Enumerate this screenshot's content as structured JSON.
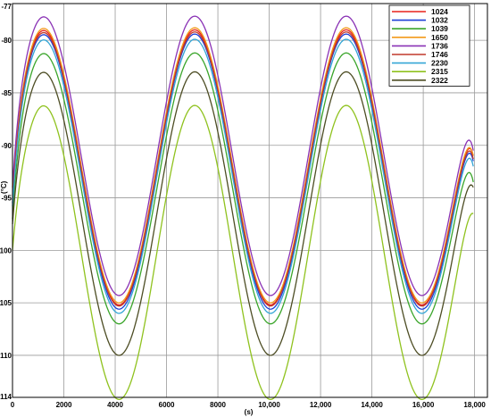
{
  "chart_data": {
    "type": "line",
    "title": "",
    "xlabel": "(s)",
    "ylabel": "(°C)",
    "xlim": [
      0,
      18500
    ],
    "ylim": [
      -114,
      -76.5
    ],
    "x_ticks": [
      0,
      2000,
      4000,
      6000,
      8000,
      10000,
      12000,
      14000,
      16000,
      18000
    ],
    "x_tick_labels": [
      "0",
      "2000",
      "4000",
      "6000",
      "8000",
      "10,000",
      "12,000",
      "14,000",
      "16,000",
      "18,000"
    ],
    "y_ticks": [
      -114,
      -110,
      -105,
      -100,
      -95,
      -90,
      -85,
      -80
    ],
    "y_tick_labels": [
      "-114",
      "-110",
      "-105",
      "-100",
      "-95",
      "-90",
      "-85",
      "-80"
    ],
    "y_top_label": "-77",
    "grid": true,
    "legend_position": "top-right",
    "period_s": 5900,
    "peak_times_s": [
      1200,
      7100,
      12950
    ],
    "trough_times_s": [
      4750,
      10600,
      16550
    ],
    "series": [
      {
        "name": "1024",
        "color": "#e8201a",
        "peak": -79.0,
        "trough": -105.2,
        "start": -95.0,
        "end": -91.0
      },
      {
        "name": "1032",
        "color": "#1f3fd6",
        "peak": -79.4,
        "trough": -105.6,
        "start": -95.5,
        "end": -91.5
      },
      {
        "name": "1039",
        "color": "#3aa52a",
        "peak": -81.2,
        "trough": -107.0,
        "start": -97.0,
        "end": -93.5
      },
      {
        "name": "1650",
        "color": "#f39a1a",
        "peak": -78.8,
        "trough": -105.0,
        "start": -94.8,
        "end": -91.0
      },
      {
        "name": "1736",
        "color": "#8a32b5",
        "peak": -77.7,
        "trough": -104.3,
        "start": -94.0,
        "end": -90.5
      },
      {
        "name": "1746",
        "color": "#c0392b",
        "peak": -79.2,
        "trough": -105.3,
        "start": -95.2,
        "end": -91.3
      },
      {
        "name": "2230",
        "color": "#34a6d6",
        "peak": -79.9,
        "trough": -106.0,
        "start": -95.8,
        "end": -92.0
      },
      {
        "name": "2315",
        "color": "#8fc21e",
        "peak": -86.2,
        "trough": -114.2,
        "start": -100.0,
        "end": -96.5
      },
      {
        "name": "2322",
        "color": "#4d4d24",
        "peak": -83.0,
        "trough": -110.0,
        "start": -97.5,
        "end": -94.0
      }
    ]
  }
}
